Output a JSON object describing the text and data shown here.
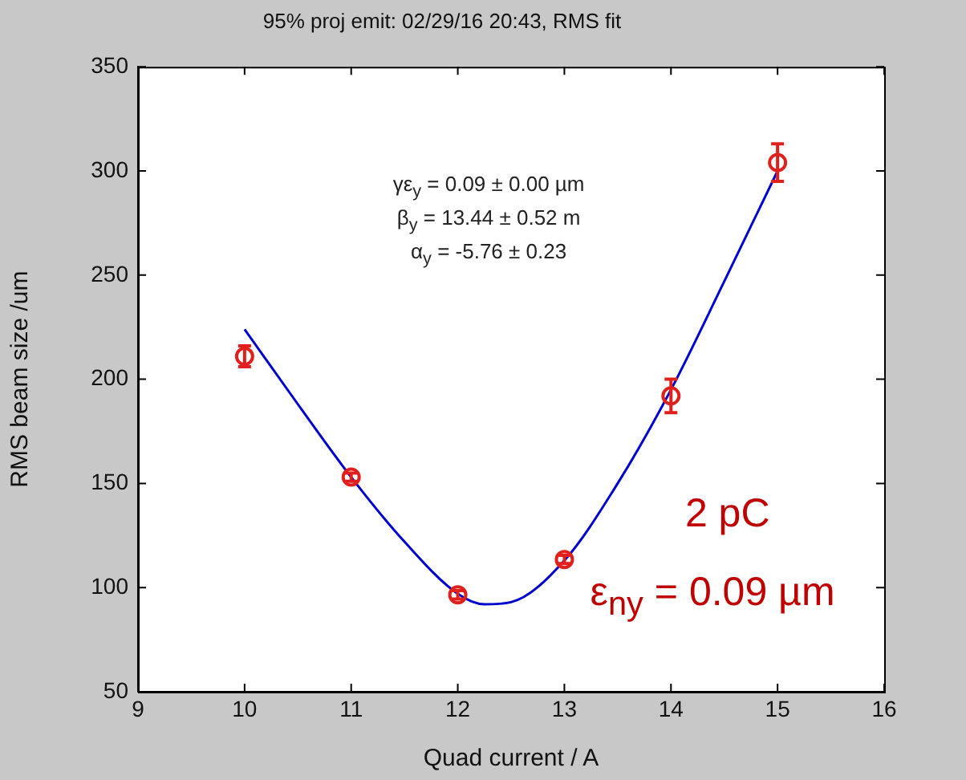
{
  "chart_data": {
    "type": "scatter",
    "title": "95% proj emit: 02/29/16 20:43, RMS fit",
    "xlabel": "Quad current / A",
    "ylabel": "RMS beam size /um",
    "xlim": [
      9,
      16
    ],
    "xticks": [
      9,
      10,
      11,
      12,
      13,
      14,
      15,
      16
    ],
    "ylim": [
      50,
      350
    ],
    "yticks": [
      50,
      100,
      150,
      200,
      250,
      300,
      350
    ],
    "grid": false,
    "legend": false,
    "series": [
      {
        "color": "#e0201c",
        "marker": "circle",
        "x": [
          10,
          11,
          12,
          13,
          14,
          15
        ],
        "values": [
          211,
          153,
          96.5,
          113.5,
          192,
          304
        ],
        "errors": [
          5,
          2,
          2,
          2,
          8,
          9
        ]
      },
      {
        "type": "line",
        "color": "#0000cc",
        "marker": "none",
        "line_style": "solid",
        "x": [
          10,
          10.5,
          11,
          11.5,
          12,
          12.25,
          12.5,
          13,
          13.5,
          14,
          14.5,
          15
        ],
        "values": [
          224,
          188,
          153,
          122,
          97,
          92,
          93,
          113,
          150,
          195,
          247,
          300
        ]
      }
    ],
    "annotations": [
      "γε$_{y}$ = 0.09 ± 0.00 µm",
      "β$_{y}$ = 13.44 ± 0.52 m",
      "α$_{y}$ = -5.76 ± 0.23",
      "2 pC",
      "ε$_{ny}$ = 0.09 µm"
    ]
  }
}
